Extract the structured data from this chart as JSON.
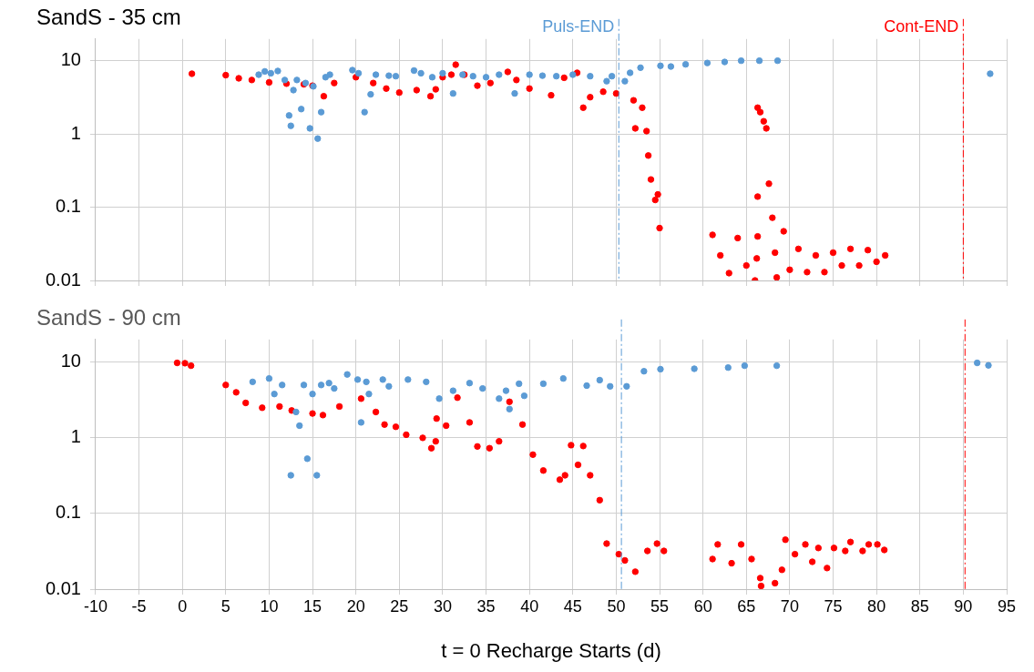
{
  "chart_data": [
    {
      "type": "scatter",
      "title": "SandS - 35 cm",
      "marker": "circle",
      "grid": true,
      "log": "y",
      "tick_labels": "y",
      "xlim": [
        -10,
        95
      ],
      "xticks": [
        -10,
        -5,
        0,
        5,
        10,
        15,
        20,
        25,
        30,
        35,
        40,
        45,
        50,
        55,
        60,
        65,
        70,
        75,
        80,
        85,
        90,
        95
      ],
      "ylim": [
        0.01,
        20
      ],
      "yticks": [
        0.01,
        0.1,
        1,
        10
      ],
      "ref_lines": [
        {
          "axis": "x",
          "value": 50.3,
          "label": "Puls-END",
          "color": "#5b9bd5",
          "line_style": "dashed"
        },
        {
          "axis": "x",
          "value": 90,
          "label": "Cont-END",
          "color": "#ff0000",
          "line_style": "dashed"
        }
      ],
      "series": [
        {
          "color": "#5b9bd5",
          "x": [
            8.8,
            9.5,
            10.2,
            11,
            11.8,
            12.3,
            12.5,
            12.8,
            13.2,
            13.7,
            14.2,
            14.7,
            15.1,
            15.6,
            16,
            16.5,
            17,
            19.6,
            20.3,
            21,
            21.7,
            22.3,
            23.8,
            24.6,
            26.7,
            27.5,
            28.8,
            30,
            31.2,
            32.3,
            33.5,
            35,
            36.5,
            38.3,
            40,
            41.5,
            43.1,
            45,
            47,
            48.9,
            49.5,
            51,
            51.6,
            52.8,
            55.1,
            56.3,
            58,
            60.5,
            62.5,
            64.4,
            66.5,
            68.6,
            93.1
          ],
          "values": [
            6.5,
            7.2,
            6.8,
            7.3,
            5.5,
            1.8,
            1.3,
            4.0,
            5.5,
            2.2,
            5.0,
            1.2,
            4.5,
            0.87,
            2.0,
            6.0,
            6.5,
            7.5,
            6.8,
            2.0,
            3.5,
            6.5,
            6.3,
            6.2,
            7.4,
            6.8,
            6.0,
            6.8,
            3.6,
            6.5,
            6.2,
            6.0,
            6.5,
            3.6,
            6.5,
            6.3,
            6.2,
            6.5,
            6.2,
            5.3,
            6.2,
            5.3,
            6.9,
            8.1,
            8.6,
            8.4,
            9.0,
            9.4,
            9.7,
            10.1,
            10.1,
            10.1,
            6.7
          ]
        },
        {
          "color": "#ff0000",
          "x": [
            1.1,
            5,
            6.5,
            8,
            10,
            12,
            14,
            15,
            16.3,
            17.5,
            20,
            22,
            23.5,
            25,
            27,
            28.6,
            29.2,
            30,
            31,
            31.5,
            32.5,
            34,
            35.5,
            37.5,
            38.5,
            40,
            42.5,
            44,
            45.5,
            46.2,
            47,
            48.5,
            50,
            52,
            52.2,
            53,
            53.5,
            53.7,
            54,
            54.5,
            54.8,
            55,
            61.1,
            62,
            63,
            64,
            65,
            66,
            66.2,
            66.3,
            66.3,
            66.3,
            66.6,
            67,
            67.3,
            67.6,
            68,
            68.3,
            68.5,
            69.3,
            70,
            71,
            72,
            73,
            74,
            75,
            76,
            77,
            78,
            79,
            80,
            81
          ],
          "values": [
            6.7,
            6.4,
            5.8,
            5.5,
            5.1,
            4.9,
            4.8,
            4.6,
            3.3,
            5.0,
            6.0,
            5.0,
            4.2,
            3.7,
            4.0,
            3.3,
            4.1,
            6.0,
            6.5,
            8.9,
            6.5,
            4.6,
            5.0,
            7.1,
            5.5,
            4.2,
            3.4,
            5.9,
            6.9,
            2.3,
            3.2,
            3.8,
            3.6,
            2.9,
            1.2,
            2.3,
            1.1,
            0.51,
            0.24,
            0.126,
            0.15,
            0.052,
            0.042,
            0.022,
            0.0126,
            0.038,
            0.016,
            0.01,
            0.02,
            2.3,
            0.14,
            0.04,
            2.0,
            1.5,
            1.2,
            0.21,
            0.072,
            0.024,
            0.011,
            0.047,
            0.014,
            0.027,
            0.013,
            0.022,
            0.013,
            0.024,
            0.016,
            0.027,
            0.016,
            0.026,
            0.018,
            0.022
          ]
        }
      ]
    },
    {
      "type": "scatter",
      "title": "SandS - 90 cm",
      "xlabel": "t = 0 Recharge Starts (d)",
      "marker": "circle",
      "grid": true,
      "log": "y",
      "xlim": [
        -10,
        95
      ],
      "xticks": [
        -10,
        -5,
        0,
        5,
        10,
        15,
        20,
        25,
        30,
        35,
        40,
        45,
        50,
        55,
        60,
        65,
        70,
        75,
        80,
        85,
        90,
        95
      ],
      "ylim": [
        0.01,
        20
      ],
      "yticks": [
        0.01,
        0.1,
        1,
        10
      ],
      "ref_lines": [
        {
          "axis": "x",
          "value": 50.6,
          "color": "#5b9bd5",
          "line_style": "dashed"
        },
        {
          "axis": "x",
          "value": 90.2,
          "color": "#ff0000",
          "line_style": "dashed"
        }
      ],
      "series": [
        {
          "color": "#5b9bd5",
          "x": [
            8.1,
            10,
            10.6,
            11.5,
            12.5,
            13.1,
            13.5,
            14,
            14.4,
            15,
            15.5,
            16,
            16.9,
            17.5,
            19,
            20.2,
            20.6,
            21.2,
            21.5,
            23.1,
            23.8,
            26,
            28.1,
            29.6,
            31.2,
            33.1,
            34.6,
            36.5,
            37.3,
            37.7,
            38.8,
            39.4,
            41.6,
            43.9,
            46.6,
            48.1,
            49.3,
            51.2,
            53.2,
            55.1,
            59,
            62.9,
            64.8,
            68.5,
            91.6,
            92.9
          ],
          "values": [
            5.5,
            6.1,
            3.8,
            5.0,
            0.32,
            2.2,
            1.45,
            5.0,
            0.53,
            3.8,
            0.32,
            5.0,
            5.3,
            4.5,
            6.9,
            5.9,
            1.6,
            5.5,
            3.8,
            5.9,
            4.8,
            5.9,
            5.5,
            3.3,
            4.2,
            5.3,
            4.5,
            3.3,
            4.2,
            2.4,
            5.2,
            3.6,
            5.2,
            6.1,
            4.9,
            5.8,
            4.8,
            4.8,
            7.6,
            8.1,
            8.2,
            8.5,
            9.0,
            9.0,
            9.8,
            9.1
          ]
        },
        {
          "color": "#ff0000",
          "x": [
            -0.6,
            0.3,
            1.0,
            5,
            6.2,
            7.3,
            9.2,
            11.2,
            12.6,
            15,
            16.2,
            18.1,
            20.6,
            22.3,
            23.3,
            24.6,
            25.8,
            27.7,
            28.7,
            29.2,
            29.3,
            30.4,
            31.7,
            33.1,
            34,
            35.4,
            36.5,
            37.7,
            39.2,
            40.4,
            41.6,
            43.5,
            44.1,
            44.8,
            45.6,
            46.2,
            47,
            48.1,
            48.9,
            50.3,
            51,
            52.2,
            53.6,
            54.7,
            55.5,
            61.1,
            61.7,
            63.3,
            64.4,
            65.6,
            66.6,
            66.7,
            68.3,
            69.1,
            69.5,
            70.6,
            71.8,
            72.6,
            73.3,
            74.3,
            75.1,
            76.4,
            77,
            78.4,
            79.1,
            80.1,
            80.9
          ],
          "values": [
            9.8,
            9.7,
            9.0,
            5.0,
            4.0,
            2.9,
            2.5,
            2.6,
            2.3,
            2.1,
            2.0,
            2.6,
            3.3,
            2.2,
            1.5,
            1.4,
            1.1,
            1.0,
            0.73,
            0.9,
            1.8,
            1.45,
            3.4,
            1.6,
            0.77,
            0.73,
            0.9,
            3.0,
            1.5,
            0.6,
            0.37,
            0.28,
            0.32,
            0.8,
            0.44,
            0.78,
            0.32,
            0.15,
            0.04,
            0.029,
            0.024,
            0.017,
            0.032,
            0.04,
            0.032,
            0.025,
            0.039,
            0.022,
            0.039,
            0.025,
            0.014,
            0.011,
            0.012,
            0.018,
            0.045,
            0.029,
            0.039,
            0.023,
            0.035,
            0.019,
            0.035,
            0.032,
            0.042,
            0.032,
            0.039,
            0.039,
            0.033
          ]
        }
      ]
    }
  ]
}
